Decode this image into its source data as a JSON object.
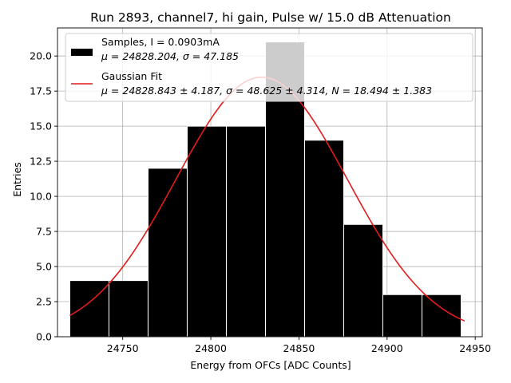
{
  "chart_data": {
    "type": "bar",
    "title": "Run 2893, channel7, hi gain, Pulse w/ 15.0 dB Attenuation",
    "xlabel": "Energy from OFCs [ADC Counts]",
    "ylabel": "Entries",
    "xlim": [
      24713,
      24954
    ],
    "ylim": [
      0,
      22
    ],
    "xticks": [
      24750,
      24800,
      24850,
      24900,
      24950
    ],
    "yticks": [
      0.0,
      2.5,
      5.0,
      7.5,
      10.0,
      12.5,
      15.0,
      17.5,
      20.0
    ],
    "grid": true,
    "legend_position": "top-right",
    "colors": {
      "histogram": "#000000",
      "fit": "#e41a1c",
      "grid": "#b0b0b0"
    },
    "histogram": {
      "name": "Samples, I = 0.0903mA",
      "stats_label": "μ = 24828.204, σ = 47.185",
      "bin_edges": [
        24720.0,
        24742.2,
        24764.4,
        24786.6,
        24808.8,
        24831.0,
        24853.2,
        24875.4,
        24897.6,
        24919.8,
        24942.0
      ],
      "counts": [
        4,
        4,
        12,
        15,
        15,
        21,
        14,
        8,
        3,
        3
      ]
    },
    "fit": {
      "name": "Gaussian Fit",
      "stats_label": "μ = 24828.843 ± 4.187, σ = 48.625 ± 4.314, N = 18.494 ± 1.383",
      "mu": 24828.843,
      "sigma": 48.625,
      "amplitude": 18.494,
      "x_range": [
        24720,
        24944
      ]
    }
  }
}
